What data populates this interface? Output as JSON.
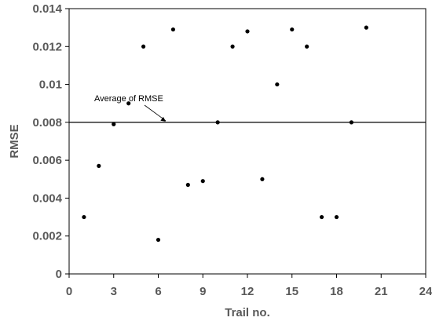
{
  "chart_data": {
    "type": "scatter",
    "xlabel": "Trail no.",
    "ylabel": "RMSE",
    "xlim": [
      0,
      24
    ],
    "ylim": [
      0,
      0.014
    ],
    "x_ticks": [
      0,
      3,
      6,
      9,
      12,
      15,
      18,
      21,
      24
    ],
    "y_ticks": [
      0,
      0.002,
      0.004,
      0.006,
      0.008,
      0.01,
      0.012,
      0.014
    ],
    "x_tick_labels": [
      "0",
      "3",
      "6",
      "9",
      "12",
      "15",
      "18",
      "21",
      "24"
    ],
    "y_tick_labels": [
      "0",
      "0.002",
      "0.004",
      "0.006",
      "0.008",
      "0.01",
      "0.012",
      "0.014"
    ],
    "grid": false,
    "series": [
      {
        "x": [
          1,
          2,
          3,
          4,
          5,
          6,
          7,
          8,
          9,
          10,
          11,
          12,
          13,
          14,
          15,
          16,
          17,
          18,
          19,
          20
        ],
        "y": [
          0.003,
          0.0057,
          0.0079,
          0.009,
          0.012,
          0.0018,
          0.0129,
          0.0047,
          0.0049,
          0.008,
          0.012,
          0.0128,
          0.005,
          0.01,
          0.0129,
          0.012,
          0.003,
          0.003,
          0.008,
          0.013
        ]
      }
    ],
    "reference_line": {
      "y": 0.008
    },
    "annotation": {
      "text": "Average of RMSE",
      "target_x": 6.5,
      "target_y": 0.008
    }
  },
  "colors": {
    "points": "#000000",
    "axis": "#000000",
    "reference_line": "#000000",
    "tick_text": "#595959"
  }
}
